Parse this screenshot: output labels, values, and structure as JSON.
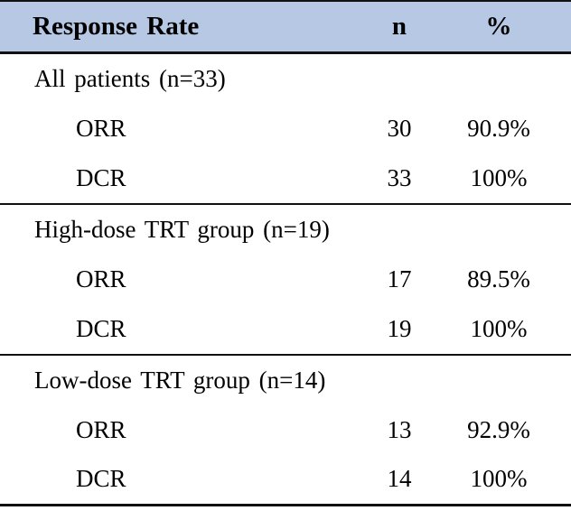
{
  "table": {
    "header": {
      "label": "Response Rate",
      "col_n": "n",
      "col_pct": "%"
    },
    "sections": [
      {
        "group": "All patients (n=33)",
        "rows": [
          {
            "label": "ORR",
            "n": "30",
            "pct": "90.9%"
          },
          {
            "label": "DCR",
            "n": "33",
            "pct": "100%"
          }
        ]
      },
      {
        "group": "High-dose TRT group (n=19)",
        "rows": [
          {
            "label": "ORR",
            "n": "17",
            "pct": "89.5%"
          },
          {
            "label": "DCR",
            "n": "19",
            "pct": "100%"
          }
        ]
      },
      {
        "group": "Low-dose TRT group (n=14)",
        "rows": [
          {
            "label": "ORR",
            "n": "13",
            "pct": "92.9%"
          },
          {
            "label": "DCR",
            "n": "14",
            "pct": "100%"
          }
        ]
      }
    ],
    "colors": {
      "header_bg": "#b6c8e4",
      "border": "#111111",
      "text": "#000000"
    }
  }
}
